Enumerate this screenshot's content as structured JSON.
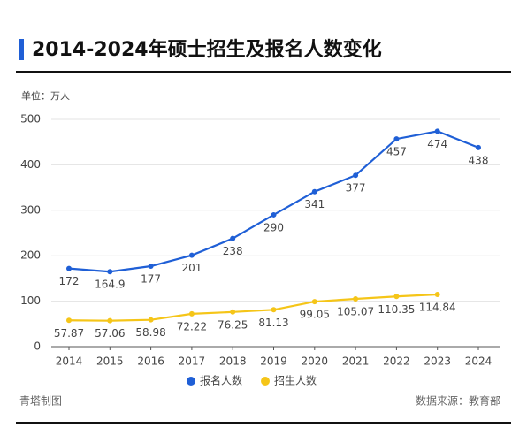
{
  "chart_data": {
    "type": "line",
    "title": "2014-2024年硕士招生及报名人数变化",
    "unit_label": "单位：万人",
    "credit": "青塔制图",
    "source": "数据来源：教育部",
    "categories": [
      "2014",
      "2015",
      "2016",
      "2017",
      "2018",
      "2019",
      "2020",
      "2021",
      "2022",
      "2023",
      "2024"
    ],
    "series": [
      {
        "name": "报名人数",
        "color": "#1f5fd6",
        "values": [
          172,
          164.9,
          177,
          201,
          238,
          290,
          341,
          377,
          457,
          474,
          438
        ]
      },
      {
        "name": "招生人数",
        "color": "#f5c518",
        "values": [
          57.87,
          57.06,
          58.98,
          72.22,
          76.25,
          81.13,
          99.05,
          105.07,
          110.35,
          114.84,
          null
        ]
      }
    ],
    "ylim": [
      0,
      500
    ],
    "yticks": [
      0,
      100,
      200,
      300,
      400,
      500
    ],
    "grid": true
  }
}
